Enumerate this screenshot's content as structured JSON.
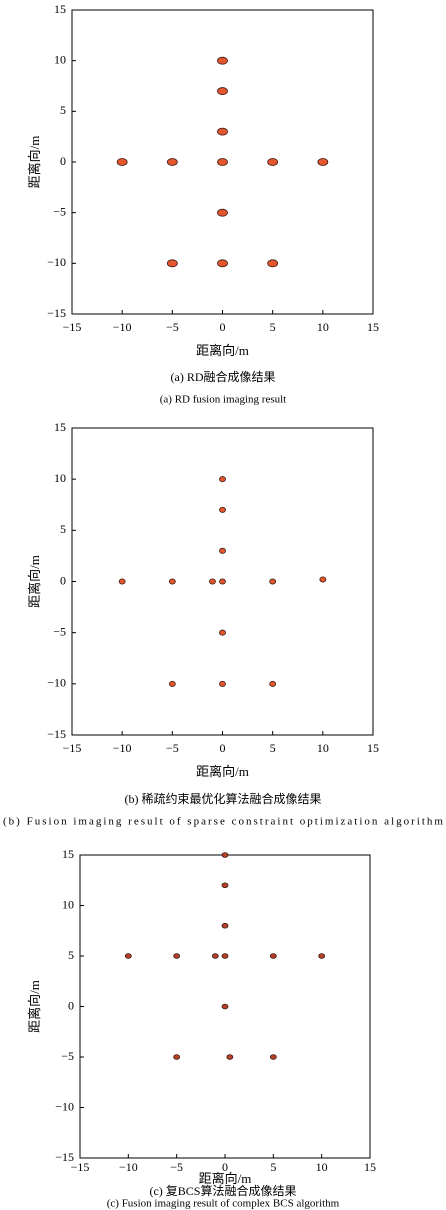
{
  "chart_data": [
    {
      "type": "scatter",
      "title": "(a) RD融合成像结果",
      "subtitle": "(a) RD fusion imaging result",
      "xlabel": "距离向/m",
      "ylabel": "距离向/m",
      "color": "#e4572e",
      "x": [
        -10,
        -5,
        0,
        5,
        10,
        0,
        0,
        0,
        0,
        -5,
        0,
        5
      ],
      "y": [
        0,
        0,
        0,
        0,
        0,
        10,
        7,
        3,
        -5,
        -10,
        -10,
        -10
      ],
      "xlim": [
        -15,
        15
      ],
      "ylim": [
        -15,
        15
      ],
      "xticks": [
        {
          "value": -15,
          "label": "−15"
        },
        {
          "value": -10,
          "label": "−10"
        },
        {
          "value": -5,
          "label": "−5"
        },
        0,
        5,
        10,
        15
      ],
      "yticks": [
        {
          "value": -15,
          "label": "−15"
        },
        {
          "value": -10,
          "label": "−10"
        },
        {
          "value": -5,
          "label": "−5"
        },
        0,
        5,
        10,
        15
      ]
    },
    {
      "type": "scatter",
      "title": "(b) 稀疏约束最优化算法融合成像结果",
      "subtitle": "(b) Fusion imaging result of sparse constraint optimization algorithm",
      "xlabel": "距离向/m",
      "ylabel": "距离向/m",
      "color": "#e4572e",
      "x": [
        0,
        0,
        0,
        -10,
        -5,
        -1,
        0,
        5,
        10,
        0,
        -5,
        0,
        5
      ],
      "y": [
        10,
        7,
        3,
        0,
        0,
        0,
        0,
        0,
        0.2,
        -5,
        -10,
        -10,
        -10
      ],
      "xlim": [
        -15,
        15
      ],
      "ylim": [
        -15,
        15
      ],
      "xticks": [
        {
          "value": -15,
          "label": "−15"
        },
        {
          "value": -10,
          "label": "−10"
        },
        {
          "value": -5,
          "label": "−5"
        },
        0,
        5,
        10,
        15
      ],
      "yticks": [
        {
          "value": -15,
          "label": "−15"
        },
        {
          "value": -10,
          "label": "−10"
        },
        {
          "value": -5,
          "label": "−5"
        },
        0,
        5,
        10,
        15
      ]
    },
    {
      "type": "scatter",
      "title": "(c) 复BCS算法融合成像结果",
      "subtitle": "(c) Fusion imaging result of complex BCS algorithm",
      "xlabel": "距离向/m",
      "ylabel": "距离向/m",
      "color": "#b5402a",
      "x": [
        0,
        0,
        0,
        -10,
        -5,
        -1,
        0,
        5,
        10,
        0,
        -5,
        0.5,
        5
      ],
      "y": [
        15,
        12,
        8,
        5,
        5,
        5,
        5,
        5,
        5,
        0,
        -5,
        -5,
        -5
      ],
      "xlim": [
        -15,
        15
      ],
      "ylim": [
        -15,
        15
      ],
      "xticks": [
        {
          "value": -15,
          "label": "−15"
        },
        {
          "value": -10,
          "label": "−10"
        },
        {
          "value": -5,
          "label": "−5"
        },
        0,
        5,
        10,
        15
      ],
      "yticks": [
        {
          "value": -15,
          "label": "−15"
        },
        {
          "value": -10,
          "label": "−10"
        },
        {
          "value": -5,
          "label": "−5"
        },
        0,
        5,
        10,
        15
      ]
    }
  ]
}
